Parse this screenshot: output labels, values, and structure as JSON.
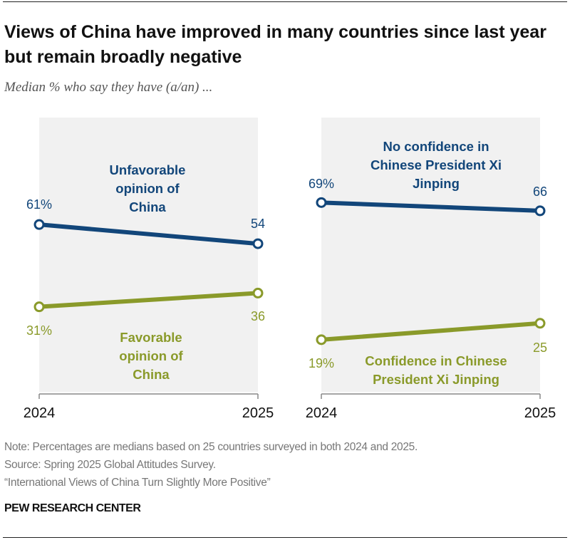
{
  "title": "Views of China have improved in many countries since last year but remain broadly negative",
  "subtitle": "Median % who say they have (a/an) ...",
  "colors": {
    "negative": "#12467a",
    "positive": "#8a9a2a",
    "panel_bg": "#f1f1f1"
  },
  "chart_data": [
    {
      "type": "line",
      "x": [
        "2024",
        "2025"
      ],
      "ylim": [
        0,
        100
      ],
      "grid": false,
      "series": [
        {
          "name": "Unfavorable opinion of China",
          "label_lines": [
            "Unfavorable",
            "opinion of",
            "China"
          ],
          "values": [
            61,
            54
          ],
          "value_labels": [
            "61%",
            "54"
          ],
          "color": "#12467a"
        },
        {
          "name": "Favorable opinion of China",
          "label_lines": [
            "Favorable",
            "opinion of",
            "China"
          ],
          "values": [
            31,
            36
          ],
          "value_labels": [
            "31%",
            "36"
          ],
          "color": "#8a9a2a"
        }
      ]
    },
    {
      "type": "line",
      "x": [
        "2024",
        "2025"
      ],
      "ylim": [
        0,
        100
      ],
      "grid": false,
      "series": [
        {
          "name": "No confidence in Chinese President Xi Jinping",
          "label_lines": [
            "No confidence in",
            "Chinese President Xi",
            "Jinping"
          ],
          "values": [
            69,
            66
          ],
          "value_labels": [
            "69%",
            "66"
          ],
          "color": "#12467a"
        },
        {
          "name": "Confidence in Chinese President Xi Jinping",
          "label_lines": [
            "Confidence in Chinese",
            "President Xi Jinping"
          ],
          "values": [
            19,
            25
          ],
          "value_labels": [
            "19%",
            "25"
          ],
          "color": "#8a9a2a"
        }
      ]
    }
  ],
  "footer": {
    "note": "Note: Percentages are medians based on 25 countries surveyed in both 2024 and 2025.",
    "source": "Source: Spring 2025 Global Attitudes Survey.",
    "report": "“International Views of China Turn Slightly More Positive”",
    "brand": "PEW RESEARCH CENTER"
  }
}
